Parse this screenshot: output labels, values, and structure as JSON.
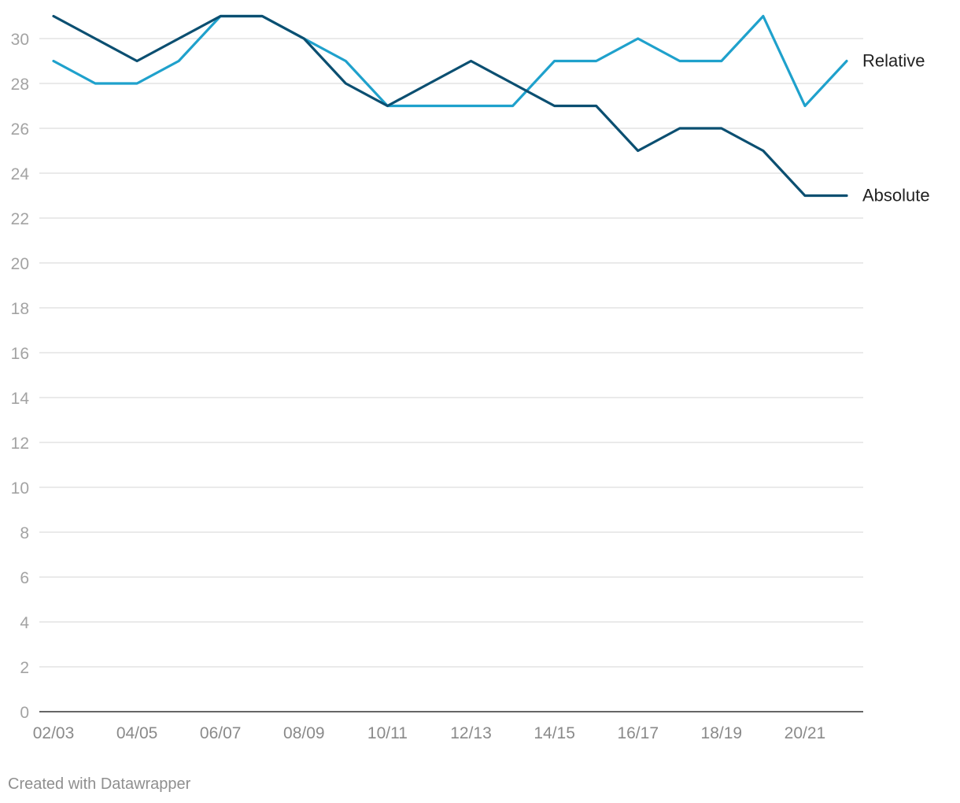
{
  "chart_data": {
    "type": "line",
    "title": "",
    "xlabel": "",
    "ylabel": "",
    "x": [
      "02/03",
      "03/04",
      "04/05",
      "05/06",
      "06/07",
      "07/08",
      "08/09",
      "09/10",
      "10/11",
      "11/12",
      "12/13",
      "13/14",
      "14/15",
      "15/16",
      "16/17",
      "17/18",
      "18/19",
      "19/20",
      "20/21",
      "21/22"
    ],
    "x_tick_labels": [
      "02/03",
      "04/05",
      "06/07",
      "08/09",
      "10/11",
      "12/13",
      "14/15",
      "16/17",
      "18/19",
      "20/21"
    ],
    "y_ticks": [
      0,
      2,
      4,
      6,
      8,
      10,
      12,
      14,
      16,
      18,
      20,
      22,
      24,
      26,
      28,
      30
    ],
    "ylim": [
      0,
      31
    ],
    "grid": "horizontal",
    "legend": "direct labels at line ends (right)",
    "series": [
      {
        "name": "Relative",
        "color": "#1fa1cc",
        "values": [
          29,
          28,
          28,
          29,
          31,
          31,
          30,
          29,
          27,
          27,
          27,
          27,
          29,
          29,
          30,
          29,
          29,
          31,
          27,
          29
        ]
      },
      {
        "name": "Absolute",
        "color": "#0b4f71",
        "values": [
          31,
          30,
          29,
          30,
          31,
          31,
          30,
          28,
          27,
          28,
          29,
          28,
          27,
          27,
          25,
          26,
          26,
          25,
          23,
          23
        ]
      }
    ]
  },
  "footer": {
    "credit": "Created with Datawrapper"
  }
}
